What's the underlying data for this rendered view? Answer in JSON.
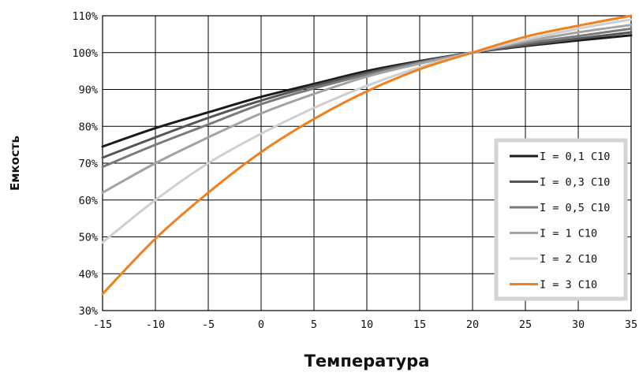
{
  "chart_data": {
    "type": "line",
    "title": "",
    "xlabel": "Температура",
    "ylabel": "Емкость",
    "x_ticks": [
      "-15",
      "-10",
      "-5",
      "0",
      "5",
      "10",
      "15",
      "20",
      "25",
      "30",
      "35"
    ],
    "y_ticks": [
      "30%",
      "40%",
      "50%",
      "60%",
      "70%",
      "80%",
      "90%",
      "100%",
      "110%"
    ],
    "xlim": [
      -15,
      35
    ],
    "ylim": [
      30,
      110
    ],
    "grid": true,
    "legend_position": "right",
    "x": [
      -15,
      -10,
      -5,
      0,
      5,
      10,
      15,
      20,
      25,
      30,
      35
    ],
    "series": [
      {
        "name": "I = 0,1 C10",
        "color": "#1a1a1a",
        "values": [
          74.5,
          79.5,
          83.8,
          88,
          91.5,
          95,
          97.7,
          100,
          101.8,
          103.3,
          104.7
        ]
      },
      {
        "name": "I = 0,3 C10",
        "color": "#555555",
        "values": [
          71.5,
          77,
          82.3,
          87,
          91,
          94.5,
          97.5,
          100,
          102,
          103.8,
          105.5
        ]
      },
      {
        "name": "I = 0,5 C10",
        "color": "#7a7a7a",
        "values": [
          69,
          75,
          80.5,
          86,
          90.3,
          94,
          97.3,
          100,
          102.5,
          104.5,
          106.5
        ]
      },
      {
        "name": "I = 1 C10",
        "color": "#a3a3a3",
        "values": [
          62,
          70,
          77,
          83.5,
          88.8,
          93.5,
          97,
          100,
          103,
          105.5,
          107.5
        ]
      },
      {
        "name": "I = 2 C10",
        "color": "#cfcfcf",
        "values": [
          48.5,
          60,
          70,
          78,
          85,
          91,
          96,
          100,
          103.5,
          106.5,
          109
        ]
      },
      {
        "name": "I = 3 C10",
        "color": "#f07f1e",
        "values": [
          34.5,
          49.5,
          62,
          73,
          82,
          89.5,
          95.5,
          100,
          104.3,
          107.3,
          110
        ]
      }
    ]
  }
}
